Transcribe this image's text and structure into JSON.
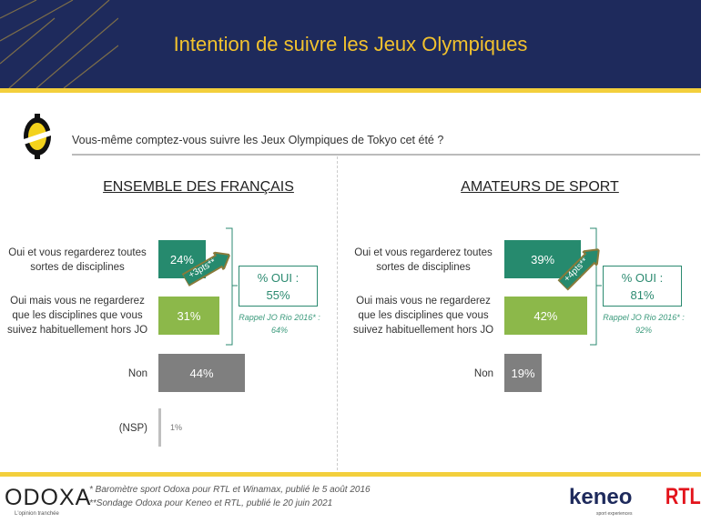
{
  "header": {
    "title": "Intention de suivre les Jeux Olympiques"
  },
  "question": "Vous-même comptez-vous suivre les Jeux Olympiques de Tokyo cet été ?",
  "colors": {
    "navy": "#1e2a5c",
    "gold": "#f2c22e",
    "oui_toutes": "#268a6e",
    "oui_mais": "#8cb84a",
    "non": "#7f7f7f",
    "nsp": "#bfbfbf"
  },
  "chart_data": [
    {
      "type": "bar",
      "title": "ENSEMBLE DES FRANÇAIS",
      "categories": [
        "Oui et vous regarderez toutes sortes de disciplines",
        "Oui mais vous ne regarderez que les disciplines que vous suivez habituellement hors JO",
        "Non",
        "(NSP)"
      ],
      "values": [
        24,
        31,
        44,
        1
      ],
      "value_labels": [
        "24%",
        "31%",
        "44%",
        "1%"
      ],
      "evolution": "+3pts**",
      "summary": {
        "label": "% OUI :",
        "value": "55%"
      },
      "rappel": "Rappel JO Rio 2016* : 64%"
    },
    {
      "type": "bar",
      "title": "AMATEURS DE SPORT",
      "categories": [
        "Oui et vous regarderez toutes sortes de disciplines",
        "Oui mais vous ne regarderez que les disciplines que vous suivez habituellement hors JO",
        "Non"
      ],
      "values": [
        39,
        42,
        19
      ],
      "value_labels": [
        "39%",
        "42%",
        "19%"
      ],
      "evolution": "+4pts**",
      "summary": {
        "label": "% OUI :",
        "value": "81%"
      },
      "rappel": "Rappel JO Rio 2016* : 92%"
    }
  ],
  "footer": {
    "notes": [
      "* Baromètre sport Odoxa pour RTL et Winamax, publié le 5 août 2016",
      "**Sondage Odoxa pour Keneo et RTL, publié le 20 juin 2021"
    ],
    "odoxa": "ODOXA",
    "odoxa_tagline": "L'opinion tranchée",
    "keneo": "keneo",
    "keneo_tagline": "sport experiences",
    "rtl": "RTL"
  }
}
